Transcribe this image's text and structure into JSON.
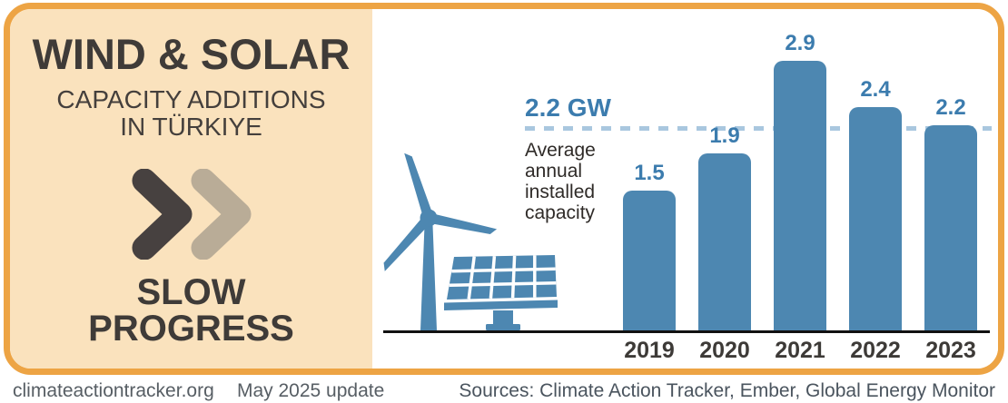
{
  "header": {
    "title": "WIND & SOLAR",
    "subtitle_line1": "CAPACITY ADDITIONS",
    "subtitle_line2": "IN TÜRKIYE",
    "verdict_line1": "SLOW",
    "verdict_line2": "PROGRESS"
  },
  "icons": {
    "progress": "double-chevron-fast-forward-icon",
    "wind": "wind-turbine-icon",
    "solar": "solar-panel-icon"
  },
  "chart_data": {
    "type": "bar",
    "categories": [
      "2019",
      "2020",
      "2021",
      "2022",
      "2023"
    ],
    "values": [
      1.5,
      1.9,
      2.9,
      2.4,
      2.2
    ],
    "unit": "GW",
    "ylim": [
      0,
      3.1
    ],
    "average_line": {
      "value": 2.2,
      "label": "2.2 GW",
      "description": "Average annual installed capacity"
    },
    "legend_position": "none",
    "grid": false,
    "bar_color": "#4D87B1",
    "value_label_color": "#3C7CAE",
    "dashed_line_color": "#A9C7DF"
  },
  "footer": {
    "site": "climateactiontracker.org",
    "update": "May 2025 update",
    "sources": "Sources: Climate Action Tracker, Ember, Global Energy Monitor"
  },
  "colors": {
    "border_orange": "#EDA444",
    "panel_peach": "#FAE2BD",
    "dark_text": "#3F3B38",
    "chevron_dark": "#474140",
    "chevron_tan": "#B9AC97",
    "illustration_blue": "#4D87B1",
    "baseline_black": "#111111",
    "footer_gray": "#575E64"
  }
}
